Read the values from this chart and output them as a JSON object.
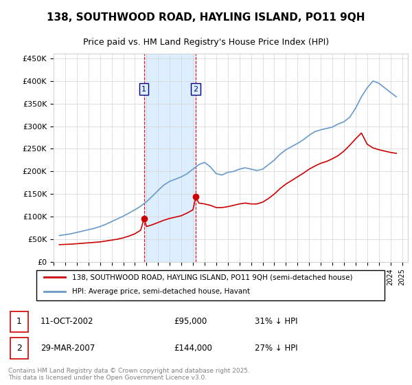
{
  "title": "138, SOUTHWOOD ROAD, HAYLING ISLAND, PO11 9QH",
  "subtitle": "Price paid vs. HM Land Registry's House Price Index (HPI)",
  "hpi_label": "HPI: Average price, semi-detached house, Havant",
  "property_label": "138, SOUTHWOOD ROAD, HAYLING ISLAND, PO11 9QH (semi-detached house)",
  "hpi_color": "#6699cc",
  "property_color": "#cc0000",
  "highlight_color": "#ddeeff",
  "sale1_date": "11-OCT-2002",
  "sale1_price": "£95,000",
  "sale1_hpi": "31% ↓ HPI",
  "sale2_date": "29-MAR-2007",
  "sale2_price": "£144,000",
  "sale2_hpi": "27% ↓ HPI",
  "sale1_year": 2002.78,
  "sale2_year": 2007.24,
  "ylim_max": 460000,
  "footer": "Contains HM Land Registry data © Crown copyright and database right 2025.\nThis data is licensed under the Open Government Licence v3.0.",
  "hpi_years": [
    1995.5,
    1996.0,
    1996.5,
    1997.0,
    1997.5,
    1998.0,
    1998.5,
    1999.0,
    1999.5,
    2000.0,
    2000.5,
    2001.0,
    2001.5,
    2002.0,
    2002.5,
    2003.0,
    2003.5,
    2004.0,
    2004.5,
    2005.0,
    2005.5,
    2006.0,
    2006.5,
    2007.0,
    2007.5,
    2008.0,
    2008.5,
    2009.0,
    2009.5,
    2010.0,
    2010.5,
    2011.0,
    2011.5,
    2012.0,
    2012.5,
    2013.0,
    2013.5,
    2014.0,
    2014.5,
    2015.0,
    2015.5,
    2016.0,
    2016.5,
    2017.0,
    2017.5,
    2018.0,
    2018.5,
    2019.0,
    2019.5,
    2020.0,
    2020.5,
    2021.0,
    2021.5,
    2022.0,
    2022.5,
    2023.0,
    2023.5,
    2024.0,
    2024.5
  ],
  "hpi_values": [
    58000,
    60000,
    62000,
    65000,
    68000,
    71000,
    74000,
    78000,
    83000,
    89000,
    95000,
    101000,
    108000,
    115000,
    123000,
    133000,
    145000,
    158000,
    170000,
    178000,
    183000,
    188000,
    195000,
    205000,
    215000,
    220000,
    210000,
    195000,
    192000,
    198000,
    200000,
    205000,
    208000,
    205000,
    202000,
    205000,
    215000,
    225000,
    238000,
    248000,
    255000,
    262000,
    270000,
    280000,
    288000,
    292000,
    295000,
    298000,
    305000,
    310000,
    320000,
    340000,
    365000,
    385000,
    400000,
    395000,
    385000,
    375000,
    365000
  ],
  "prop_years": [
    1995.5,
    1996.0,
    1996.5,
    1997.0,
    1997.5,
    1998.0,
    1998.5,
    1999.0,
    1999.5,
    2000.0,
    2000.5,
    2001.0,
    2001.5,
    2002.0,
    2002.5,
    2002.78,
    2003.0,
    2003.5,
    2004.0,
    2004.5,
    2005.0,
    2005.5,
    2006.0,
    2006.5,
    2007.0,
    2007.24,
    2007.5,
    2008.0,
    2008.5,
    2009.0,
    2009.5,
    2010.0,
    2010.5,
    2011.0,
    2011.5,
    2012.0,
    2012.5,
    2013.0,
    2013.5,
    2014.0,
    2014.5,
    2015.0,
    2015.5,
    2016.0,
    2016.5,
    2017.0,
    2017.5,
    2018.0,
    2018.5,
    2019.0,
    2019.5,
    2020.0,
    2020.5,
    2021.0,
    2021.5,
    2022.0,
    2022.5,
    2023.0,
    2023.5,
    2024.0,
    2024.5
  ],
  "prop_values": [
    38000,
    38500,
    39000,
    40000,
    41000,
    42000,
    43000,
    44000,
    46000,
    48000,
    50000,
    53000,
    57000,
    62000,
    70000,
    95000,
    78000,
    82000,
    87000,
    92000,
    96000,
    99000,
    102000,
    108000,
    115000,
    144000,
    130000,
    128000,
    125000,
    120000,
    120000,
    122000,
    125000,
    128000,
    130000,
    128000,
    128000,
    132000,
    140000,
    150000,
    162000,
    172000,
    180000,
    188000,
    196000,
    205000,
    212000,
    218000,
    222000,
    228000,
    235000,
    245000,
    258000,
    272000,
    285000,
    260000,
    252000,
    248000,
    245000,
    242000,
    240000
  ]
}
